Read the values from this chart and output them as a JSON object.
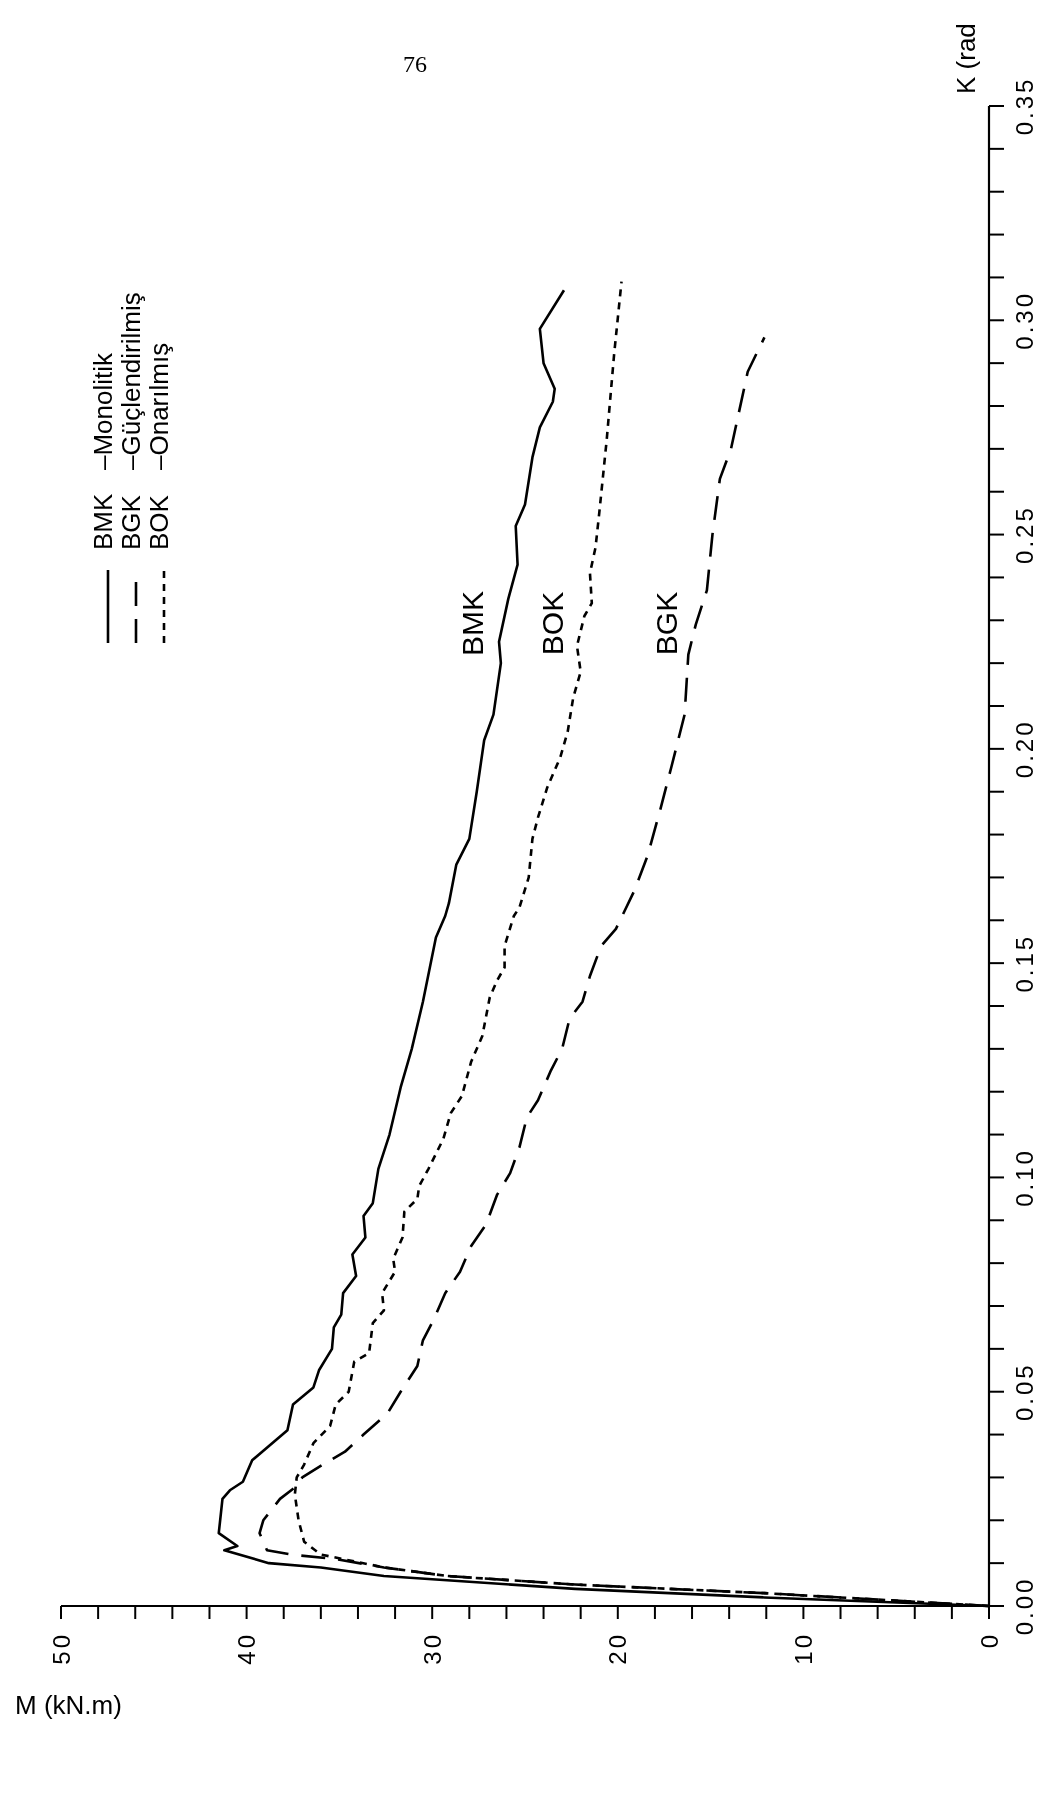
{
  "chart_data": {
    "type": "line",
    "xlabel": "M (kN.m)",
    "ylabel": "K (rad",
    "xlim": [
      50,
      0
    ],
    "ylim": [
      0,
      0.35
    ],
    "xticks": [
      0,
      {
        "value": 2,
        "label": null
      },
      {
        "value": 4,
        "label": null
      },
      {
        "value": 6,
        "label": null
      },
      {
        "value": 8,
        "label": null
      },
      10,
      {
        "value": 12,
        "label": null
      },
      {
        "value": 14,
        "label": null
      },
      {
        "value": 16,
        "label": null
      },
      {
        "value": 18,
        "label": null
      },
      20,
      {
        "value": 22,
        "label": null
      },
      {
        "value": 24,
        "label": null
      },
      {
        "value": 26,
        "label": null
      },
      {
        "value": 28,
        "label": null
      },
      30,
      {
        "value": 32,
        "label": null
      },
      {
        "value": 34,
        "label": null
      },
      {
        "value": 36,
        "label": null
      },
      {
        "value": 38,
        "label": null
      },
      40,
      {
        "value": 42,
        "label": null
      },
      {
        "value": 44,
        "label": null
      },
      {
        "value": 46,
        "label": null
      },
      {
        "value": 48,
        "label": null
      },
      50
    ],
    "yticks": [
      {
        "value": 0,
        "label": "0.00"
      },
      {
        "value": 0.01,
        "label": null
      },
      {
        "value": 0.02,
        "label": null
      },
      {
        "value": 0.03,
        "label": null
      },
      {
        "value": 0.04,
        "label": null
      },
      {
        "value": 0.05,
        "label": "0.05"
      },
      {
        "value": 0.06,
        "label": null
      },
      {
        "value": 0.07,
        "label": null
      },
      {
        "value": 0.08,
        "label": null
      },
      {
        "value": 0.09,
        "label": null
      },
      {
        "value": 0.1,
        "label": "0.10"
      },
      {
        "value": 0.11,
        "label": null
      },
      {
        "value": 0.12,
        "label": null
      },
      {
        "value": 0.13,
        "label": null
      },
      {
        "value": 0.14,
        "label": null
      },
      {
        "value": 0.15,
        "label": "0.15"
      },
      {
        "value": 0.16,
        "label": null
      },
      {
        "value": 0.17,
        "label": null
      },
      {
        "value": 0.18,
        "label": null
      },
      {
        "value": 0.19,
        "label": null
      },
      {
        "value": 0.2,
        "label": "0.20"
      },
      {
        "value": 0.21,
        "label": null
      },
      {
        "value": 0.22,
        "label": null
      },
      {
        "value": 0.23,
        "label": null
      },
      {
        "value": 0.24,
        "label": null
      },
      {
        "value": 0.25,
        "label": "0.25"
      },
      {
        "value": 0.26,
        "label": null
      },
      {
        "value": 0.27,
        "label": null
      },
      {
        "value": 0.28,
        "label": null
      },
      {
        "value": 0.29,
        "label": null
      },
      {
        "value": 0.3,
        "label": "0.30"
      },
      {
        "value": 0.31,
        "label": null
      },
      {
        "value": 0.32,
        "label": null
      },
      {
        "value": 0.33,
        "label": null
      },
      {
        "value": 0.34,
        "label": null
      },
      {
        "value": 0.35,
        "label": "0.35"
      }
    ],
    "legend": "top left",
    "annotations": [
      "76",
      "–Monolitik",
      "–Güçlendirilmiş",
      "–Onarılmış"
    ],
    "series": [
      {
        "name": "BMK",
        "color": "#000000",
        "line_style": "solid",
        "x": [
          0,
          12.1,
          22.3,
          29.2,
          32.6,
          36.0,
          38.8,
          41.2,
          40.5,
          41.5,
          41.3,
          40.9,
          40.2,
          39.7,
          37.8,
          37.5,
          36.4,
          36.1,
          35.4,
          35.3,
          34.9,
          34.8,
          34.1,
          34.3,
          33.6,
          33.7,
          33.2,
          32.9,
          32.3,
          31.7,
          31.1,
          30.5,
          29.8,
          29.3,
          29.1,
          28.7,
          28.0,
          27.6,
          27.2,
          26.7,
          26.3,
          26.4,
          25.9,
          25.4,
          25.5,
          25.0,
          24.6,
          24.2,
          23.5,
          23.4,
          24.0,
          24.2,
          22.9
        ],
        "values": [
          0,
          0.002,
          0.004,
          0.006,
          0.007,
          0.009,
          0.01,
          0.013,
          0.014,
          0.017,
          0.025,
          0.027,
          0.029,
          0.034,
          0.041,
          0.047,
          0.051,
          0.055,
          0.06,
          0.065,
          0.068,
          0.073,
          0.077,
          0.082,
          0.086,
          0.091,
          0.094,
          0.102,
          0.11,
          0.121,
          0.13,
          0.141,
          0.156,
          0.161,
          0.164,
          0.173,
          0.179,
          0.19,
          0.202,
          0.208,
          0.22,
          0.225,
          0.235,
          0.243,
          0.252,
          0.257,
          0.268,
          0.275,
          0.281,
          0.284,
          0.29,
          0.298,
          0.307
        ]
      },
      {
        "name": "BGK",
        "color": "#000000",
        "line_style": "dashed",
        "x": [
          0,
          12.1,
          22.3,
          29.2,
          32.6,
          35.3,
          37.6,
          38.9,
          39.3,
          39.1,
          38.2,
          37.3,
          37.0,
          35.9,
          34.7,
          33.7,
          32.4,
          31.7,
          30.8,
          30.5,
          29.9,
          29.3,
          28.5,
          27.9,
          27.1,
          26.5,
          25.8,
          25.3,
          24.9,
          24.3,
          23.6,
          23.0,
          22.6,
          21.9,
          21.5,
          20.9,
          20.1,
          19.1,
          18.4,
          17.7,
          17.1,
          16.4,
          16.2,
          15.8,
          15.2,
          14.9,
          14.5,
          13.9,
          13.6,
          13.0,
          12.1
        ],
        "values": [
          0,
          0.003,
          0.005,
          0.007,
          0.009,
          0.011,
          0.012,
          0.013,
          0.017,
          0.02,
          0.025,
          0.028,
          0.03,
          0.033,
          0.036,
          0.04,
          0.045,
          0.05,
          0.056,
          0.062,
          0.067,
          0.073,
          0.078,
          0.084,
          0.089,
          0.096,
          0.101,
          0.107,
          0.114,
          0.118,
          0.125,
          0.13,
          0.137,
          0.141,
          0.147,
          0.154,
          0.158,
          0.167,
          0.175,
          0.186,
          0.196,
          0.208,
          0.222,
          0.229,
          0.237,
          0.25,
          0.263,
          0.27,
          0.276,
          0.288,
          0.296
        ]
      },
      {
        "name": "BOK",
        "color": "#000000",
        "line_style": "dotted",
        "x": [
          0,
          12.1,
          22.3,
          29.2,
          32.6,
          36.0,
          36.9,
          37.2,
          37.4,
          37.3,
          36.9,
          36.4,
          35.5,
          35.2,
          34.5,
          34.2,
          33.4,
          33.2,
          32.6,
          32.7,
          32.0,
          32.1,
          31.6,
          31.5,
          30.8,
          30.7,
          30.2,
          29.4,
          29.0,
          28.4,
          27.9,
          27.3,
          26.9,
          26.5,
          26.1,
          26.1,
          25.6,
          25.3,
          24.8,
          24.6,
          24.3,
          23.8,
          23.1,
          22.7,
          22.4,
          22.0,
          22.2,
          21.8,
          21.4,
          21.5,
          21.2,
          21.0,
          20.6,
          20.2,
          19.8
        ],
        "values": [
          0,
          0.003,
          0.005,
          0.007,
          0.009,
          0.012,
          0.015,
          0.02,
          0.026,
          0.03,
          0.033,
          0.038,
          0.042,
          0.047,
          0.05,
          0.057,
          0.059,
          0.066,
          0.069,
          0.073,
          0.078,
          0.081,
          0.086,
          0.092,
          0.095,
          0.098,
          0.102,
          0.109,
          0.115,
          0.119,
          0.127,
          0.133,
          0.142,
          0.146,
          0.149,
          0.154,
          0.161,
          0.163,
          0.17,
          0.179,
          0.184,
          0.191,
          0.198,
          0.204,
          0.212,
          0.218,
          0.224,
          0.231,
          0.234,
          0.241,
          0.247,
          0.255,
          0.272,
          0.292,
          0.309
        ]
      }
    ]
  }
}
